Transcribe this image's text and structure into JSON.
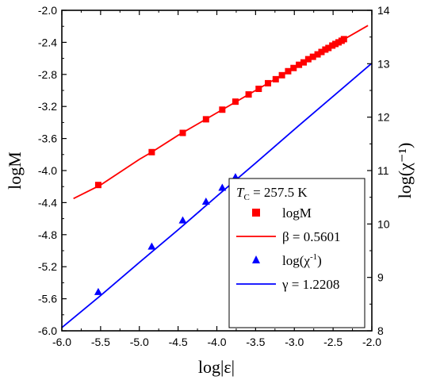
{
  "chart_data": {
    "type": "scatter",
    "xlabel": "log|ε|",
    "ylabel_left": "logM",
    "ylabel_right": "log(χ⁻¹)",
    "xlim": [
      -6.0,
      -2.0
    ],
    "ylim_left": [
      -6.0,
      -2.0
    ],
    "ylim_right": [
      8,
      14
    ],
    "x_ticks": [
      "-6.0",
      "-5.5",
      "-5.0",
      "-4.5",
      "-4.0",
      "-3.5",
      "-3.0",
      "-2.5",
      "-2.0"
    ],
    "y_left_ticks": [
      "-2.0",
      "-2.4",
      "-2.8",
      "-3.2",
      "-3.6",
      "-4.0",
      "-4.4",
      "-4.8",
      "-5.2",
      "-5.6",
      "-6.0"
    ],
    "y_right_ticks": [
      "14",
      "13",
      "12",
      "11",
      "10",
      "9",
      "8"
    ],
    "legend": {
      "title": "T",
      "title_sub": "C",
      "title_value": " = 257.5 K",
      "entries": [
        {
          "label": "logM",
          "kind": "square",
          "color": "#ff0000"
        },
        {
          "label": "β = 0.5601",
          "kind": "line",
          "color": "#ff0000"
        },
        {
          "label": "log(χ",
          "sup": "-1",
          "after": ")",
          "kind": "triangle",
          "color": "#0000ff"
        },
        {
          "label": "γ = 1.2208",
          "kind": "line",
          "color": "#0000ff"
        }
      ]
    },
    "series": [
      {
        "name": "logM",
        "axis": "left",
        "marker": "square",
        "color": "#ff0000",
        "x": [
          -5.53,
          -4.84,
          -4.44,
          -4.14,
          -3.93,
          -3.76,
          -3.59,
          -3.46,
          -3.34,
          -3.24,
          -3.16,
          -3.08,
          -3.01,
          -2.94,
          -2.88,
          -2.82,
          -2.76,
          -2.7,
          -2.65,
          -2.6,
          -2.56,
          -2.51,
          -2.47,
          -2.43,
          -2.39,
          -2.36
        ],
        "y": [
          -4.18,
          -3.77,
          -3.53,
          -3.36,
          -3.24,
          -3.14,
          -3.05,
          -2.98,
          -2.91,
          -2.86,
          -2.81,
          -2.76,
          -2.72,
          -2.68,
          -2.65,
          -2.61,
          -2.58,
          -2.55,
          -2.52,
          -2.49,
          -2.47,
          -2.44,
          -2.42,
          -2.4,
          -2.38,
          -2.36
        ]
      },
      {
        "name": "β = 0.5601",
        "axis": "left",
        "marker": "line",
        "color": "#ff0000",
        "x": [
          -5.85,
          -5.5,
          -5.0,
          -4.84,
          -4.5,
          -4.0,
          -3.5,
          -3.0,
          -2.5,
          -2.05
        ],
        "y": [
          -4.35,
          -4.18,
          -3.86,
          -3.77,
          -3.56,
          -3.28,
          -3.0,
          -2.72,
          -2.44,
          -2.19
        ]
      },
      {
        "name": "log(χ⁻¹)",
        "axis": "right",
        "marker": "triangle",
        "color": "#0000ff",
        "x": [
          -5.53,
          -4.84,
          -4.44,
          -4.14,
          -3.93,
          -3.76
        ],
        "y": [
          8.73,
          9.58,
          10.07,
          10.42,
          10.68,
          10.88
        ]
      },
      {
        "name": "γ = 1.2208",
        "axis": "right",
        "marker": "line",
        "color": "#0000ff",
        "x": [
          -6.0,
          -5.5,
          -5.0,
          -4.5,
          -4.0,
          -3.5,
          -3.0,
          -2.5,
          -2.0
        ],
        "y": [
          8.06,
          8.66,
          9.28,
          9.89,
          10.52,
          11.14,
          11.77,
          12.39,
          13.01
        ]
      }
    ]
  }
}
